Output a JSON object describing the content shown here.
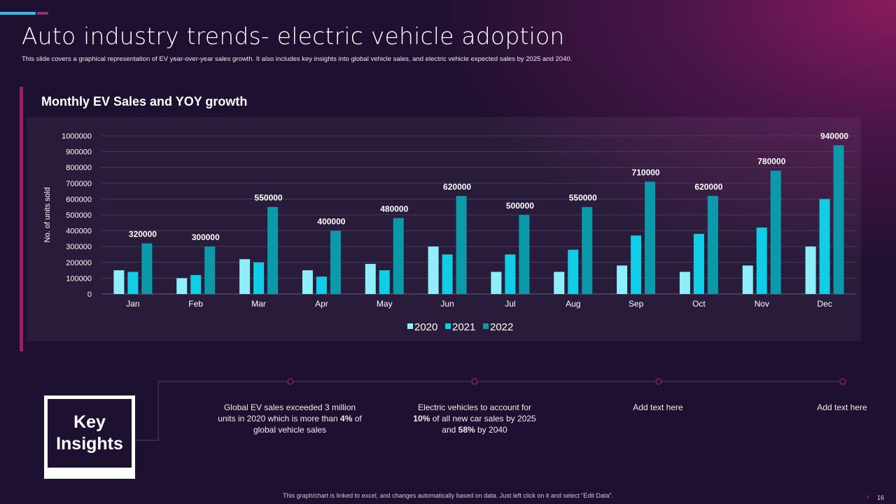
{
  "title": "Auto industry trends- electric vehicle adoption",
  "subtitle": "This slide covers a graphical representation of EV year-over-year sales growth.  It also includes key insights into global vehicle sales, and electric vehicle expected sales by 2025 and 2040.",
  "chart_title": "Monthly EV Sales and YOY growth",
  "chart_data": {
    "type": "bar",
    "title": "Monthly EV Sales and YOY growth",
    "xlabel": "",
    "ylabel": "No. of units sold",
    "ylim": [
      0,
      1000000
    ],
    "yticks": [
      "0",
      "100000",
      "200000",
      "300000",
      "400000",
      "500000",
      "600000",
      "700000",
      "800000",
      "900000",
      "1000000"
    ],
    "grid": true,
    "legend": "bottom",
    "categories": [
      "Jan",
      "Feb",
      "Mar",
      "Apr",
      "May",
      "Jun",
      "Jul",
      "Aug",
      "Sep",
      "Oct",
      "Nov",
      "Dec"
    ],
    "series": [
      {
        "name": "2020",
        "color": "#8eeefa",
        "values": [
          150000,
          100000,
          220000,
          150000,
          190000,
          300000,
          140000,
          140000,
          180000,
          140000,
          180000,
          300000
        ]
      },
      {
        "name": "2021",
        "color": "#12cde6",
        "values": [
          140000,
          120000,
          200000,
          110000,
          150000,
          250000,
          250000,
          280000,
          370000,
          380000,
          420000,
          600000
        ]
      },
      {
        "name": "2022",
        "color": "#0c9aaa",
        "values": [
          320000,
          300000,
          550000,
          400000,
          480000,
          620000,
          500000,
          550000,
          710000,
          620000,
          780000,
          940000
        ],
        "data_labels": [
          "320000",
          "300000",
          "550000",
          "400000",
          "480000",
          "620000",
          "500000",
          "550000",
          "710000",
          "620000",
          "780000",
          "940000"
        ]
      }
    ]
  },
  "key_insights": {
    "label_line1": "Key",
    "label_line2": "Insights",
    "items": [
      {
        "pre": "Global EV sales exceeded 3 million units in 2020 which is more than ",
        "bold": "4%",
        "post": " of global vehicle  sales"
      },
      {
        "pre": "Electric vehicles  to account for ",
        "bold": "10%",
        "mid": " of all new car sales by 2025 and ",
        "bold2": "58%",
        "post": " by 2040"
      },
      {
        "text": "Add text here"
      },
      {
        "text": "Add text here"
      }
    ]
  },
  "footer": "This graph/chart is linked to excel, and changes automatically based on data. Just left click on it and select “Edit Data”.",
  "page_number": "16",
  "colors": {
    "accent_cyan": "#22c7e3",
    "accent_magenta": "#9c1f65"
  }
}
